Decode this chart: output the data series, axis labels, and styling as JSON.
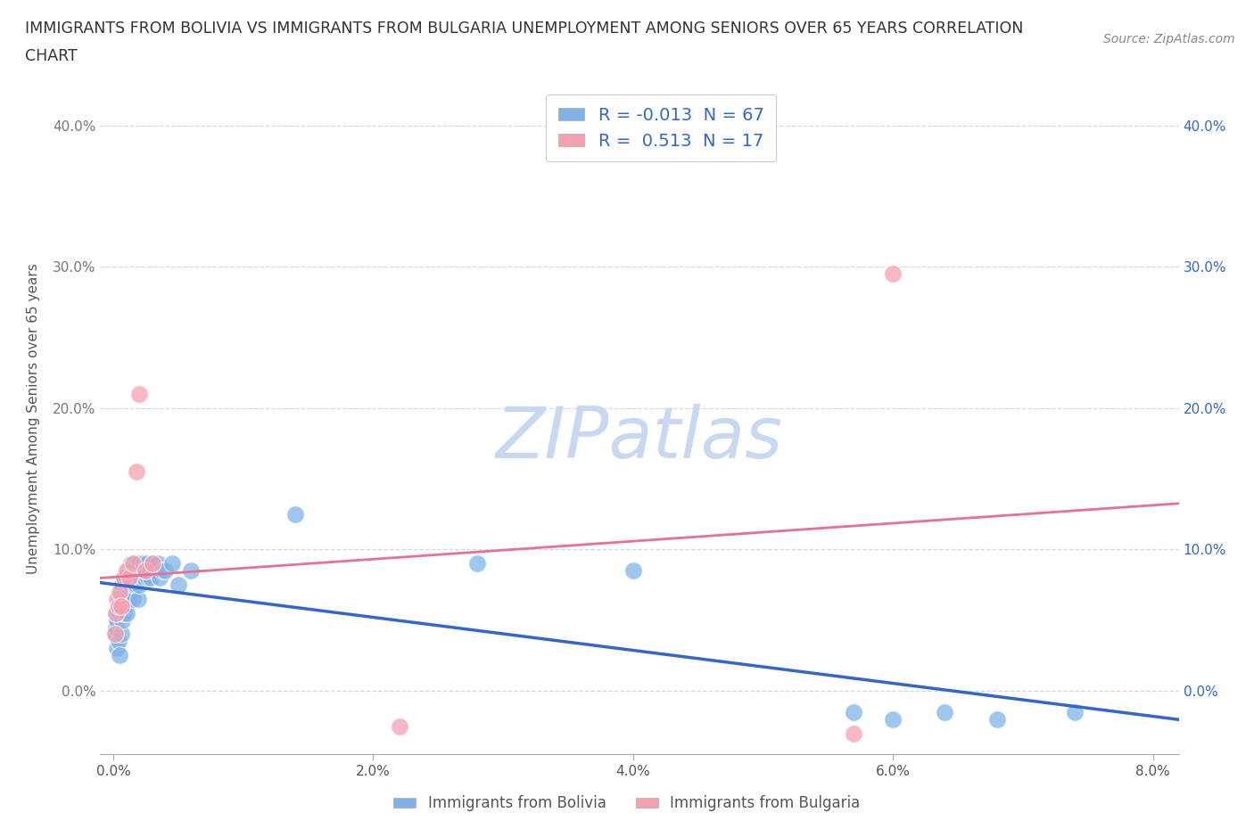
{
  "title_line1": "IMMIGRANTS FROM BOLIVIA VS IMMIGRANTS FROM BULGARIA UNEMPLOYMENT AMONG SENIORS OVER 65 YEARS CORRELATION",
  "title_line2": "CHART",
  "source": "Source: ZipAtlas.com",
  "ylabel": "Unemployment Among Seniors over 65 years",
  "xlim": [
    -0.001,
    0.082
  ],
  "ylim": [
    -0.045,
    0.43
  ],
  "xticks": [
    0.0,
    0.02,
    0.04,
    0.06,
    0.08
  ],
  "yticks": [
    0.0,
    0.1,
    0.2,
    0.3,
    0.4
  ],
  "xtick_labels": [
    "0.0%",
    "2.0%",
    "4.0%",
    "6.0%",
    "8.0%"
  ],
  "ytick_labels": [
    "0.0%",
    "10.0%",
    "20.0%",
    "30.0%",
    "40.0%"
  ],
  "bolivia_color": "#7fb3e8",
  "bulgaria_color": "#f4a0b0",
  "bolivia_line_color": "#3366cc",
  "bulgaria_line_color": "#e87090",
  "bolivia_R": -0.013,
  "bolivia_N": 67,
  "bulgaria_R": 0.513,
  "bulgaria_N": 17,
  "watermark": "ZIPatlas",
  "watermark_color": "#c8d8f0",
  "background_color": "#ffffff",
  "grid_color": "#d0d8e8",
  "bolivia_x": [
    0.0001,
    0.0002,
    0.0002,
    0.0003,
    0.0003,
    0.0004,
    0.0004,
    0.0005,
    0.0005,
    0.0006,
    0.0006,
    0.0006,
    0.0007,
    0.0007,
    0.0007,
    0.0008,
    0.0008,
    0.0009,
    0.0009,
    0.001,
    0.001,
    0.001,
    0.0011,
    0.0011,
    0.0012,
    0.0012,
    0.0013,
    0.0013,
    0.0014,
    0.0014,
    0.0015,
    0.0015,
    0.0016,
    0.0016,
    0.0017,
    0.0018,
    0.0018,
    0.0019,
    0.0019,
    0.002,
    0.002,
    0.0021,
    0.0022,
    0.0023,
    0.0024,
    0.0025,
    0.0026,
    0.0027,
    0.0028,
    0.0029,
    0.003,
    0.0032,
    0.0034,
    0.0036,
    0.0038,
    0.004,
    0.0045,
    0.005,
    0.006,
    0.014,
    0.028,
    0.04,
    0.057,
    0.06,
    0.064,
    0.068,
    0.074
  ],
  "bolivia_y": [
    0.04,
    0.045,
    0.055,
    0.05,
    0.03,
    0.055,
    0.035,
    0.065,
    0.025,
    0.07,
    0.06,
    0.04,
    0.075,
    0.065,
    0.05,
    0.08,
    0.055,
    0.07,
    0.06,
    0.08,
    0.065,
    0.055,
    0.085,
    0.07,
    0.08,
    0.065,
    0.085,
    0.07,
    0.09,
    0.075,
    0.085,
    0.065,
    0.09,
    0.075,
    0.085,
    0.09,
    0.075,
    0.08,
    0.065,
    0.09,
    0.075,
    0.08,
    0.085,
    0.09,
    0.08,
    0.085,
    0.09,
    0.08,
    0.085,
    0.08,
    0.09,
    0.085,
    0.09,
    0.08,
    0.085,
    0.085,
    0.09,
    0.075,
    0.085,
    0.125,
    0.09,
    0.085,
    -0.015,
    -0.02,
    -0.015,
    -0.02,
    -0.015
  ],
  "bulgaria_x": [
    0.0001,
    0.0002,
    0.0003,
    0.0004,
    0.0005,
    0.0006,
    0.0008,
    0.001,
    0.0012,
    0.0015,
    0.0018,
    0.002,
    0.0025,
    0.003,
    0.022,
    0.057,
    0.06
  ],
  "bulgaria_y": [
    0.04,
    0.055,
    0.065,
    0.06,
    0.07,
    0.06,
    0.08,
    0.085,
    0.08,
    0.09,
    0.155,
    0.21,
    0.085,
    0.09,
    -0.025,
    -0.03,
    0.295
  ],
  "legend_R_labels": [
    "R = -0.013  N = 67",
    "R =  0.513  N = 17"
  ]
}
